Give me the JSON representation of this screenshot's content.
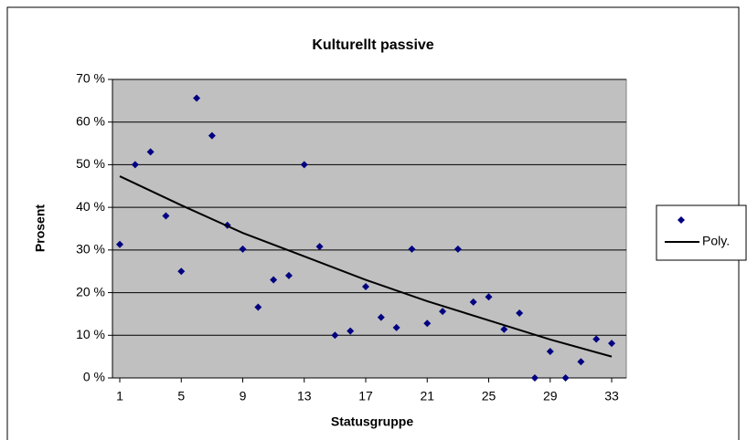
{
  "chart_data": {
    "type": "scatter",
    "title": "Kulturellt passive",
    "xlabel": "Statusgruppe",
    "ylabel": "Prosent",
    "x": [
      1,
      2,
      3,
      4,
      5,
      6,
      7,
      8,
      9,
      10,
      11,
      12,
      13,
      14,
      15,
      16,
      17,
      18,
      19,
      20,
      21,
      22,
      23,
      24,
      25,
      26,
      27,
      28,
      29,
      30,
      31,
      32,
      33
    ],
    "series": [
      {
        "color": "#000080",
        "values": [
          31.3,
          50,
          53,
          38,
          25,
          65.6,
          56.8,
          35.8,
          30.2,
          16.6,
          23,
          24,
          50,
          30.8,
          10,
          11,
          21.4,
          14.2,
          11.8,
          30.2,
          12.8,
          15.6,
          30.2,
          17.8,
          19,
          11.4,
          15.2,
          0,
          6.2,
          0,
          3.8,
          9.1,
          8.1
        ]
      },
      {
        "name": "Poly.",
        "color": "#000000",
        "x": [
          1,
          5,
          9,
          13,
          17,
          21,
          25,
          29,
          33
        ],
        "values": [
          47.3,
          40.5,
          34,
          28.5,
          23,
          18,
          13.5,
          9,
          5
        ]
      }
    ],
    "xlim": [
      1,
      33
    ],
    "xticks": [
      1,
      5,
      9,
      13,
      17,
      21,
      25,
      29,
      33
    ],
    "ylim": [
      0,
      70
    ],
    "yticks": [
      {
        "value": 0,
        "label": "0 %"
      },
      {
        "value": 10,
        "label": "10 %"
      },
      {
        "value": 20,
        "label": "20 %"
      },
      {
        "value": 30,
        "label": "30 %"
      },
      {
        "value": 40,
        "label": "40 %"
      },
      {
        "value": 50,
        "label": "50 %"
      },
      {
        "value": 60,
        "label": "60 %"
      },
      {
        "value": 70,
        "label": "70 %"
      }
    ],
    "grid": true,
    "plot_background": "#c0c0c0",
    "legend": "right"
  }
}
